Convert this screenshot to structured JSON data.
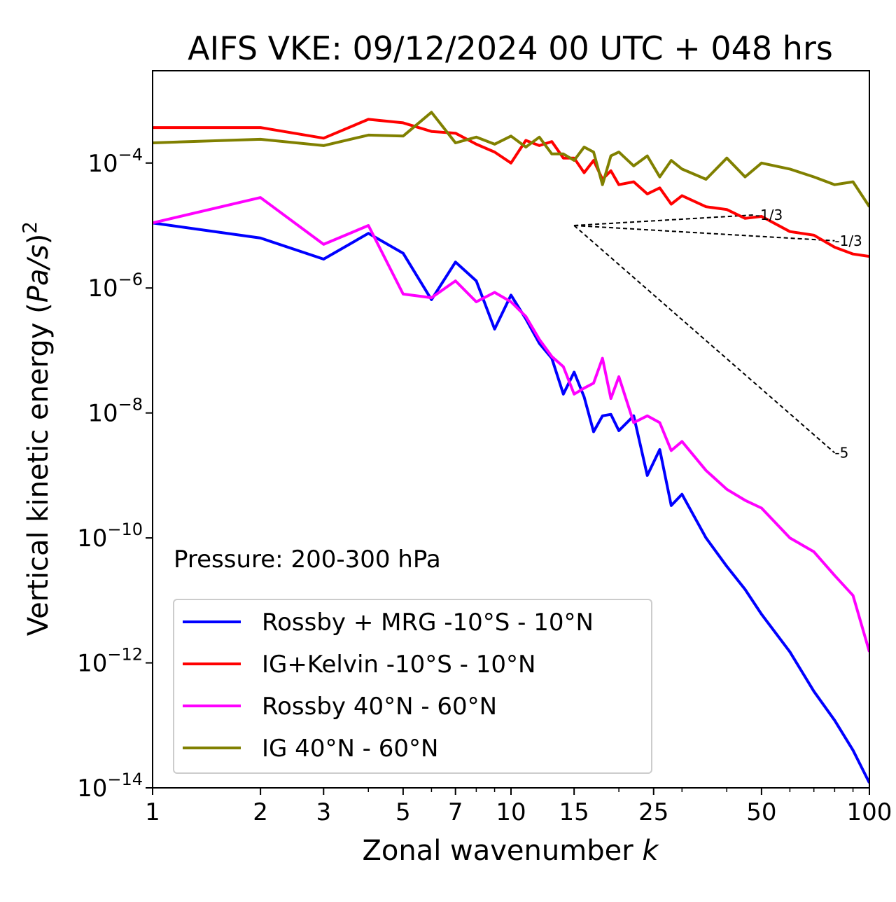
{
  "chart_data": {
    "type": "line",
    "title": "AIFS VKE: 09/12/2024 00 UTC + 048 hrs",
    "xlabel": "Zonal wavenumber k",
    "ylabel": "Vertical kinetic energy (Pa/s)²",
    "xscale": "log",
    "yscale": "log",
    "xlim": [
      1,
      100
    ],
    "ylim": [
      1e-14,
      0.003
    ],
    "xticks": [
      1,
      2,
      3,
      5,
      7,
      10,
      15,
      25,
      50,
      100
    ],
    "xtick_labels": [
      "1",
      "2",
      "3",
      "5",
      "7",
      "10",
      "15",
      "25",
      "50",
      "100"
    ],
    "yticks": [
      1e-14,
      1e-12,
      1e-10,
      1e-08,
      1e-06,
      0.0001
    ],
    "ytick_labels": [
      {
        "base": "10",
        "exp": "−14"
      },
      {
        "base": "10",
        "exp": "−12"
      },
      {
        "base": "10",
        "exp": "−10"
      },
      {
        "base": "10",
        "exp": "−8"
      },
      {
        "base": "10",
        "exp": "−6"
      },
      {
        "base": "10",
        "exp": "−4"
      }
    ],
    "annotation": "Pressure: 200-300 hPa",
    "legend_position": "lower-left",
    "series": [
      {
        "name": "Rossby + MRG -10°S - 10°N",
        "color": "#0000ff",
        "x": [
          1,
          2,
          3,
          4,
          5,
          6,
          7,
          8,
          9,
          10,
          11,
          12,
          13,
          14,
          15,
          16,
          17,
          18,
          19,
          20,
          22,
          24,
          26,
          28,
          30,
          35,
          40,
          45,
          50,
          60,
          70,
          80,
          90,
          100
        ],
        "y": [
          1.1e-05,
          6.3e-06,
          2.9e-06,
          7.5e-06,
          3.6e-06,
          6.5e-07,
          2.6e-06,
          1.3e-06,
          2.2e-07,
          7.7e-07,
          3.2e-07,
          1.3e-07,
          7.5e-08,
          2e-08,
          4.5e-08,
          1.8e-08,
          5e-09,
          9e-09,
          9.5e-09,
          5.2e-09,
          9e-09,
          1e-09,
          2.6e-09,
          3.3e-10,
          5e-10,
          1e-10,
          3.5e-11,
          1.5e-11,
          6e-12,
          1.5e-12,
          3.5e-13,
          1.2e-13,
          4e-14,
          1.2e-14
        ]
      },
      {
        "name": "IG+Kelvin -10°S - 10°N",
        "color": "#ff0000",
        "x": [
          1,
          2,
          3,
          4,
          5,
          6,
          7,
          8,
          9,
          10,
          11,
          12,
          13,
          14,
          15,
          16,
          17,
          18,
          19,
          20,
          22,
          24,
          26,
          28,
          30,
          35,
          40,
          45,
          50,
          60,
          70,
          80,
          90,
          100
        ],
        "y": [
          0.00037,
          0.00037,
          0.00025,
          0.0005,
          0.00044,
          0.00032,
          0.0003,
          0.0002,
          0.00015,
          0.0001,
          0.00023,
          0.00019,
          0.00022,
          0.00012,
          0.00012,
          7e-05,
          0.00011,
          5.5e-05,
          7.5e-05,
          4.5e-05,
          5e-05,
          3.2e-05,
          4e-05,
          2.2e-05,
          3e-05,
          2e-05,
          1.8e-05,
          1.3e-05,
          1.4e-05,
          8e-06,
          7e-06,
          4.5e-06,
          3.5e-06,
          3.2e-06
        ]
      },
      {
        "name": "Rossby 40°N - 60°N",
        "color": "#ff00ff",
        "x": [
          1,
          2,
          3,
          4,
          5,
          6,
          7,
          8,
          9,
          10,
          11,
          12,
          13,
          14,
          15,
          16,
          17,
          18,
          19,
          20,
          22,
          24,
          26,
          28,
          30,
          35,
          40,
          45,
          50,
          60,
          70,
          80,
          90,
          100
        ],
        "y": [
          1.1e-05,
          2.8e-05,
          5e-06,
          1e-05,
          8e-07,
          7e-07,
          1.3e-06,
          6e-07,
          8.5e-07,
          6e-07,
          3.5e-07,
          1.5e-07,
          8e-08,
          5.5e-08,
          2e-08,
          2.5e-08,
          3e-08,
          7.5e-08,
          1.7e-08,
          3.8e-08,
          7e-09,
          9e-09,
          7e-09,
          2.5e-09,
          3.5e-09,
          1.2e-09,
          6e-10,
          4e-10,
          3e-10,
          1e-10,
          6e-11,
          2.5e-11,
          1.2e-11,
          1.5e-12
        ]
      },
      {
        "name": "IG 40°N - 60°N",
        "color": "#808000",
        "x": [
          1,
          2,
          3,
          4,
          5,
          6,
          7,
          8,
          9,
          10,
          11,
          12,
          13,
          14,
          15,
          16,
          17,
          18,
          19,
          20,
          22,
          24,
          26,
          28,
          30,
          35,
          40,
          45,
          50,
          60,
          70,
          80,
          90,
          100
        ],
        "y": [
          0.00021,
          0.00024,
          0.00019,
          0.00028,
          0.00027,
          0.00065,
          0.00021,
          0.00026,
          0.0002,
          0.00027,
          0.00018,
          0.00026,
          0.00014,
          0.00014,
          0.00011,
          0.00018,
          0.00015,
          4.5e-05,
          0.00013,
          0.00015,
          9e-05,
          0.00013,
          6e-05,
          0.00011,
          8e-05,
          5.5e-05,
          0.00012,
          6e-05,
          0.0001,
          8e-05,
          6e-05,
          4.5e-05,
          5e-05,
          2e-05
        ]
      }
    ],
    "reference_lines": [
      {
        "label": "-1/3",
        "x": [
          15,
          48
        ],
        "y": [
          1e-05,
          1.48e-05
        ]
      },
      {
        "label": "-1/3",
        "x": [
          15,
          80
        ],
        "y": [
          1e-05,
          5.7e-06
        ]
      },
      {
        "label": "-5",
        "x": [
          15,
          80
        ],
        "y": [
          1e-05,
          2.3e-09
        ]
      }
    ]
  }
}
